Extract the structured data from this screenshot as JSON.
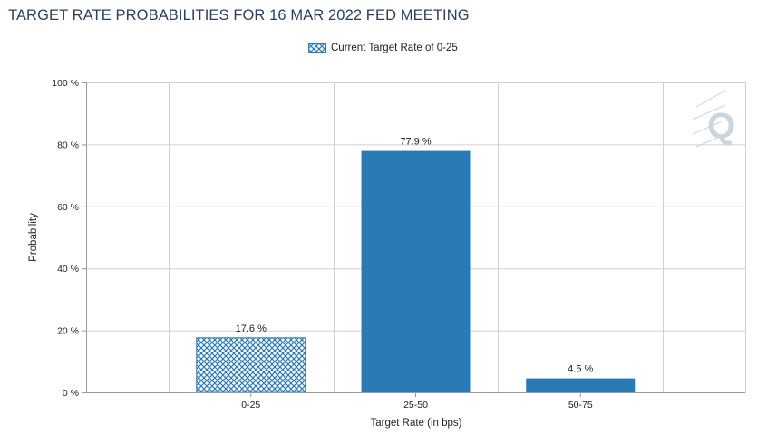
{
  "title": "TARGET RATE PROBABILITIES FOR 16 MAR 2022 FED MEETING",
  "legend": {
    "label": "Current Target Rate of 0-25"
  },
  "watermark": {
    "letter": "Q"
  },
  "colors": {
    "bar": "#2a7ab6",
    "hatch_bg": "#ffffff",
    "grid": "#d0d0d0",
    "watermark": "#c9d6dc"
  },
  "chart_data": {
    "type": "bar",
    "categories": [
      "0-25",
      "25-50",
      "50-75"
    ],
    "values": [
      17.6,
      77.9,
      4.5
    ],
    "value_labels": [
      "17.6 %",
      "77.9 %",
      "4.5 %"
    ],
    "highlighted_category": "0-25",
    "xlabel": "Target Rate (in bps)",
    "ylabel": "Probability",
    "ylim": [
      0,
      100
    ],
    "yticks": [
      0,
      20,
      40,
      60,
      80,
      100
    ],
    "ytick_labels": [
      "0 %",
      "20 %",
      "40 %",
      "60 %",
      "80 %",
      "100 %"
    ],
    "grid": true,
    "legend_position": "top-center"
  }
}
